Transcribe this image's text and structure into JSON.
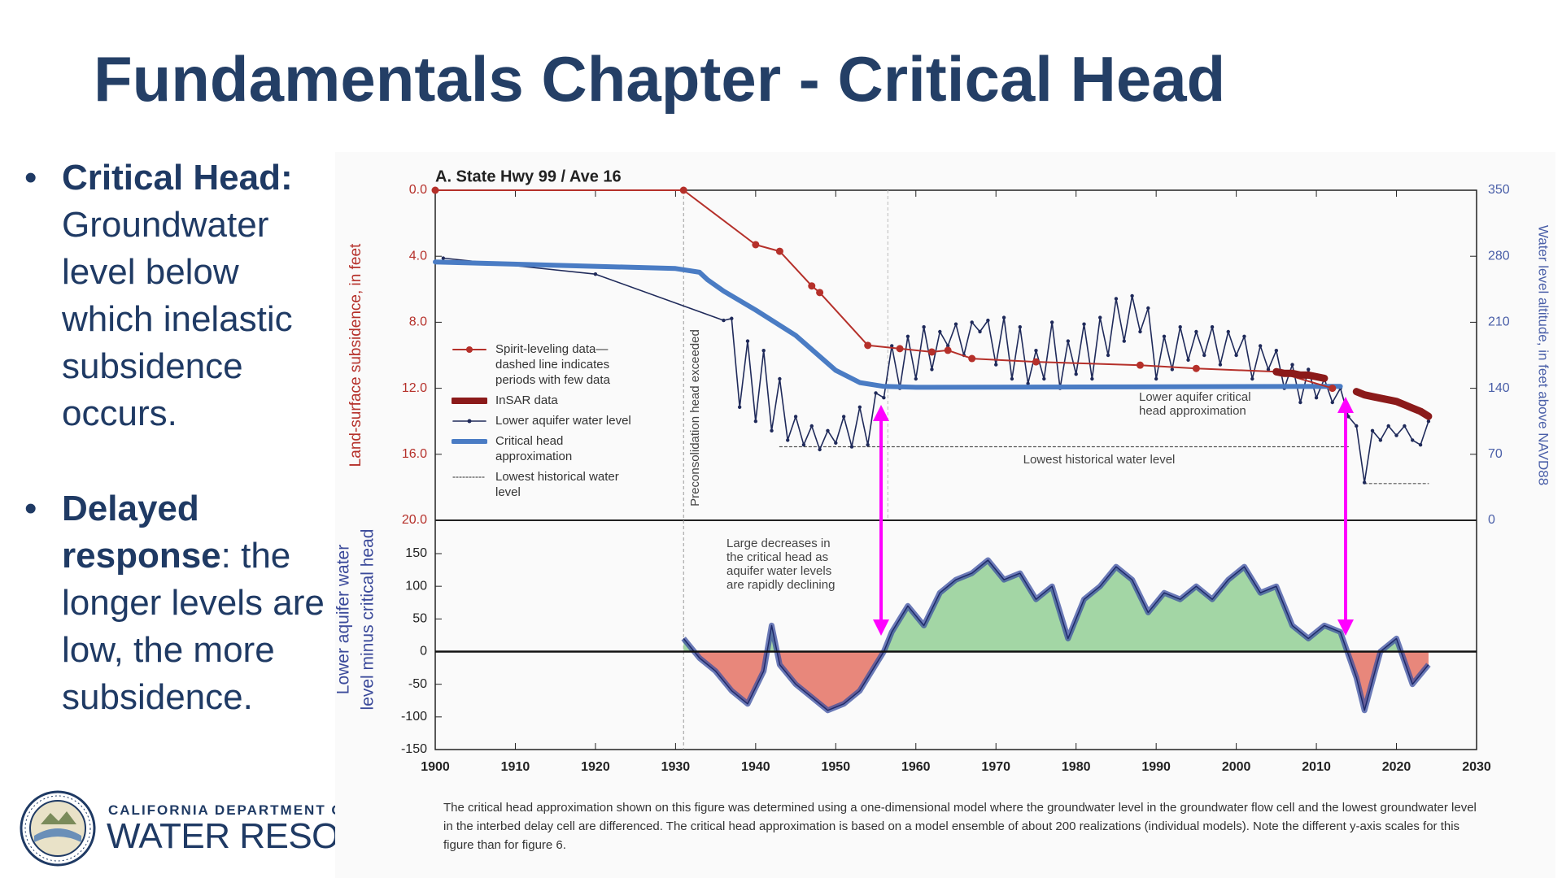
{
  "slide": {
    "title": "Fundamentals Chapter - Critical Head",
    "bullets": [
      {
        "bold": "Critical Head:",
        "text": "Groundwater level below which inelastic subsidence occurs."
      },
      {
        "bold": "Delayed response",
        "text": ": the longer levels are low, the more subsidence."
      }
    ]
  },
  "logo": {
    "line1": "CALIFORNIA DEPARTMENT OF",
    "line2": "WATER RESOURCES"
  },
  "chart_data": [
    {
      "type": "line",
      "title": "A. State Hwy 99 / Ave 16",
      "ylabel": "Land-surface subsidence, in feet",
      "y2label": "Water level altitude, in feet above NAVD88",
      "xlim": [
        1900,
        2030
      ],
      "ylim": [
        20,
        0
      ],
      "yticks": [
        {
          "value": 0,
          "label": "0.0"
        },
        {
          "value": 4,
          "label": "4.0"
        },
        {
          "value": 8,
          "label": "8.0"
        },
        {
          "value": 12,
          "label": "12.0"
        },
        {
          "value": 16,
          "label": "16.0"
        },
        {
          "value": 20,
          "label": "20.0"
        }
      ],
      "y2lim": [
        0,
        350
      ],
      "y2ticks": [
        0,
        70,
        140,
        210,
        280,
        350
      ],
      "series": [
        {
          "name": "Spirit-leveling data—dashed line indicates periods with few data",
          "color": "#b5302a",
          "x": [
            1900,
            1931,
            1940,
            1943,
            1947,
            1948,
            1954,
            1958,
            1962,
            1964,
            1967,
            1975,
            1988,
            1995,
            2005,
            2012
          ],
          "values": [
            0,
            0,
            3.3,
            3.7,
            5.8,
            6.2,
            9.4,
            9.6,
            9.8,
            9.7,
            10.2,
            10.4,
            10.6,
            10.8,
            11.0,
            12.0
          ]
        },
        {
          "name": "InSAR data",
          "color": "#8b1a1a",
          "x": [
            2005,
            2006,
            2007,
            2008,
            2009,
            2010,
            2011,
            2012,
            2013,
            2014,
            2015,
            2016,
            2017,
            2018,
            2019,
            2020,
            2021,
            2022,
            2023,
            2024
          ],
          "values": [
            11.0,
            11.1,
            11.1,
            11.2,
            11.2,
            11.3,
            11.4,
            null,
            null,
            null,
            12.2,
            12.4,
            12.5,
            12.6,
            12.7,
            12.8,
            13.0,
            13.2,
            13.4,
            13.7
          ]
        },
        {
          "name": "Lower aquifer water level",
          "color": "#1f2a5a",
          "axis": "y2",
          "x": [
            1901,
            1920,
            1936,
            1937,
            1938,
            1939,
            1940,
            1941,
            1942,
            1943,
            1944,
            1945,
            1946,
            1947,
            1948,
            1949,
            1950,
            1951,
            1952,
            1953,
            1954,
            1955,
            1956,
            1957,
            1958,
            1959,
            1960,
            1961,
            1962,
            1963,
            1964,
            1965,
            1966,
            1967,
            1968,
            1969,
            1970,
            1971,
            1972,
            1973,
            1974,
            1975,
            1976,
            1977,
            1978,
            1979,
            1980,
            1981,
            1982,
            1983,
            1984,
            1985,
            1986,
            1987,
            1988,
            1989,
            1990,
            1991,
            1992,
            1993,
            1994,
            1995,
            1996,
            1997,
            1998,
            1999,
            2000,
            2001,
            2002,
            2003,
            2004,
            2005,
            2006,
            2007,
            2008,
            2009,
            2010,
            2011,
            2012,
            2013,
            2014,
            2015,
            2016,
            2017,
            2018,
            2019,
            2020,
            2021,
            2022,
            2023,
            2024
          ],
          "values": [
            278,
            261,
            212,
            214,
            120,
            190,
            105,
            180,
            95,
            150,
            85,
            110,
            80,
            100,
            75,
            95,
            82,
            110,
            78,
            120,
            80,
            135,
            130,
            185,
            140,
            195,
            150,
            205,
            160,
            200,
            185,
            208,
            175,
            210,
            200,
            212,
            165,
            215,
            150,
            205,
            145,
            180,
            150,
            210,
            140,
            190,
            155,
            208,
            150,
            215,
            175,
            235,
            190,
            238,
            200,
            225,
            150,
            195,
            160,
            205,
            170,
            200,
            175,
            205,
            165,
            200,
            175,
            195,
            150,
            185,
            160,
            180,
            140,
            165,
            125,
            160,
            130,
            150,
            125,
            140,
            110,
            100,
            40,
            95,
            85,
            100,
            90,
            100,
            85,
            80,
            105
          ]
        },
        {
          "name": "Critical head approximation",
          "color": "#4a7cc4",
          "axis": "y2",
          "x": [
            1900,
            1930,
            1933,
            1934,
            1936,
            1940,
            1945,
            1950,
            1953,
            1956,
            1960,
            2013
          ],
          "values": [
            274,
            267,
            263,
            255,
            243,
            223,
            196,
            159,
            146,
            142,
            141,
            142
          ]
        },
        {
          "name": "Lowest historical water level",
          "color": "#555555",
          "axis": "y2",
          "dashed": true,
          "x": [
            1943,
            2014,
            2015,
            2016,
            2024
          ],
          "values": [
            78,
            78,
            null,
            39,
            39
          ]
        }
      ],
      "annotations": [
        "Preconsolidation head exceeded",
        "Lower aquifer critical head approximation",
        "Lowest historical water level"
      ]
    },
    {
      "type": "area",
      "ylabel": [
        "Lower aquifer water",
        "level minus critical head"
      ],
      "xlim": [
        1900,
        2030
      ],
      "xticks": [
        1900,
        1910,
        1920,
        1930,
        1940,
        1950,
        1960,
        1970,
        1980,
        1990,
        2000,
        2010,
        2020,
        2030
      ],
      "ylim": [
        -150,
        150
      ],
      "yticks": [
        -150,
        -100,
        -50,
        0,
        50,
        100,
        150
      ],
      "color": "#3b4fa0",
      "positive_color": "#a3d6a5",
      "negative_color": "#e8877b",
      "x": [
        1931,
        1933,
        1935,
        1937,
        1939,
        1941,
        1942,
        1943,
        1945,
        1947,
        1949,
        1951,
        1953,
        1955,
        1956,
        1957,
        1959,
        1961,
        1963,
        1965,
        1967,
        1969,
        1971,
        1973,
        1975,
        1977,
        1979,
        1981,
        1983,
        1985,
        1987,
        1989,
        1991,
        1993,
        1995,
        1997,
        1999,
        2001,
        2003,
        2005,
        2007,
        2009,
        2011,
        2013,
        2015,
        2016,
        2018,
        2020,
        2022,
        2024
      ],
      "values": [
        20,
        -10,
        -30,
        -60,
        -80,
        -30,
        40,
        -20,
        -50,
        -70,
        -90,
        -80,
        -60,
        -20,
        0,
        30,
        70,
        40,
        90,
        110,
        120,
        140,
        110,
        120,
        80,
        100,
        20,
        80,
        100,
        130,
        110,
        60,
        90,
        80,
        100,
        80,
        110,
        130,
        90,
        100,
        40,
        20,
        40,
        30,
        -40,
        -90,
        0,
        20,
        -50,
        -20
      ],
      "annotations": [
        "Large decreases in the critical head as aquifer water levels are rapidly declining"
      ]
    }
  ],
  "caption": "The critical head approximation shown on this figure was determined using a one-dimensional model where the groundwater level in the groundwater flow cell and the lowest groundwater level in the interbed delay cell are differenced. The critical head approximation is based on a model ensemble of about 200 realizations (individual models). Note the different y-axis scales for this figure than for figure 6."
}
